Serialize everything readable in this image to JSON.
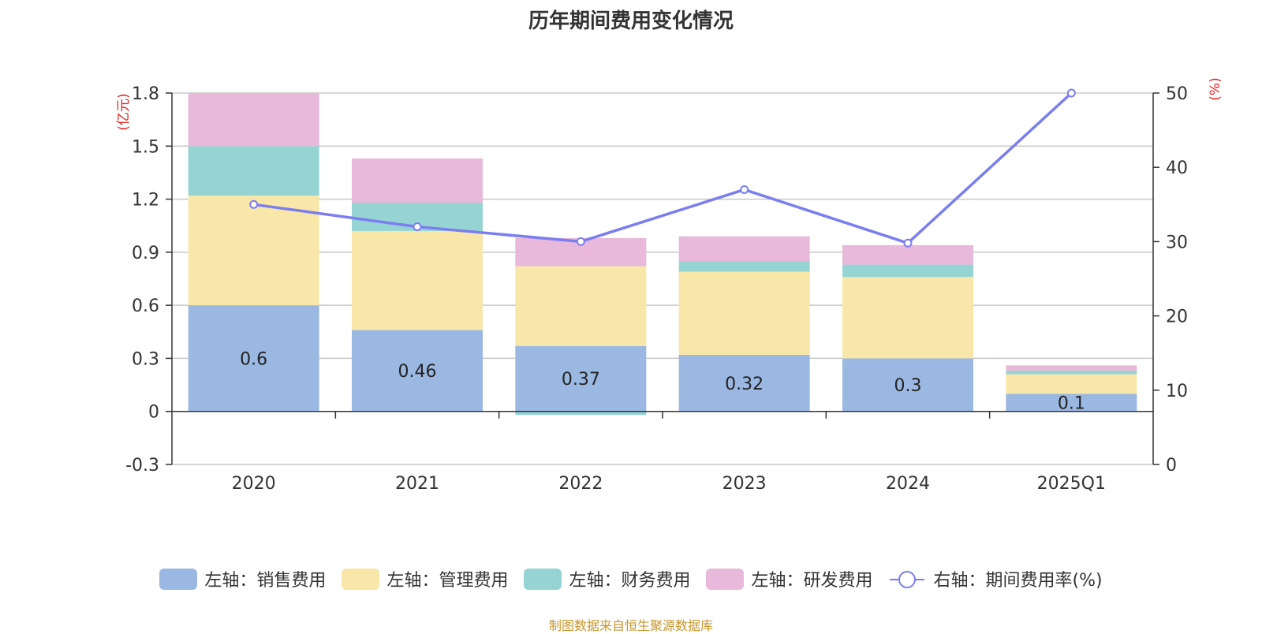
{
  "chart_data": {
    "type": "bar",
    "stacked": true,
    "title": "历年期间费用变化情况",
    "categories": [
      "2020",
      "2021",
      "2022",
      "2023",
      "2024",
      "2025Q1"
    ],
    "series": [
      {
        "name": "左轴：销售费用",
        "axis": "left",
        "color": "#9bb8e2",
        "values": [
          0.6,
          0.46,
          0.37,
          0.32,
          0.3,
          0.1
        ],
        "labels": [
          "0.6",
          "0.46",
          "0.37",
          "0.32",
          "0.3",
          "0.1"
        ]
      },
      {
        "name": "左轴：管理费用",
        "axis": "left",
        "color": "#f8e7a8",
        "values": [
          0.62,
          0.56,
          0.45,
          0.47,
          0.46,
          0.11
        ]
      },
      {
        "name": "左轴：财务费用",
        "axis": "left",
        "color": "#96d4d4",
        "values": [
          0.28,
          0.16,
          -0.02,
          0.06,
          0.07,
          0.02
        ]
      },
      {
        "name": "左轴：研发费用",
        "axis": "left",
        "color": "#e8b9da",
        "values": [
          0.3,
          0.25,
          0.16,
          0.14,
          0.11,
          0.03
        ]
      },
      {
        "name": "右轴：期间费用率(%)",
        "axis": "right",
        "type": "line",
        "color": "#7b7ef0",
        "values": [
          35,
          32,
          30,
          37,
          29.8,
          50
        ]
      }
    ],
    "y_left": {
      "unit": "(亿元)",
      "ylim": [
        -0.3,
        1.8
      ],
      "ticks": [
        "-0.3",
        "0",
        "0.3",
        "0.6",
        "0.9",
        "1.2",
        "1.5",
        "1.8"
      ]
    },
    "y_right": {
      "unit": "(%)",
      "ylim": [
        0,
        50
      ],
      "ticks": [
        "0",
        "10",
        "20",
        "30",
        "40",
        "50"
      ]
    },
    "grid": true,
    "legend_position": "bottom"
  },
  "footer": "制图数据来自恒生聚源数据库"
}
